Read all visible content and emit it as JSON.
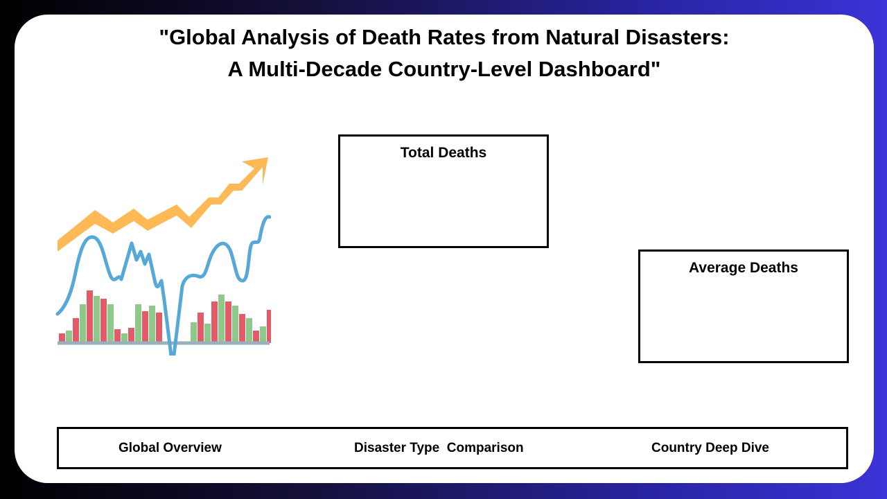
{
  "title": {
    "line1": "\"Global Analysis of Death Rates from Natural Disasters:",
    "line2": "A Multi-Decade Country-Level Dashboard\""
  },
  "illustration": {
    "icon": "trend-chart-illustration",
    "colors": {
      "arrow": "#FDB955",
      "line": "#56A8D8",
      "bar_red": "#E35A68",
      "bar_green": "#8EC98A",
      "baseline": "#9AB0BC"
    }
  },
  "cards": {
    "total_deaths": {
      "label": "Total Deaths"
    },
    "average_deaths": {
      "label": "Average Deaths"
    }
  },
  "nav": {
    "items": [
      {
        "label": "Global Overview"
      },
      {
        "label": "Disaster Type  Comparison"
      },
      {
        "label": "Country Deep Dive"
      }
    ]
  }
}
